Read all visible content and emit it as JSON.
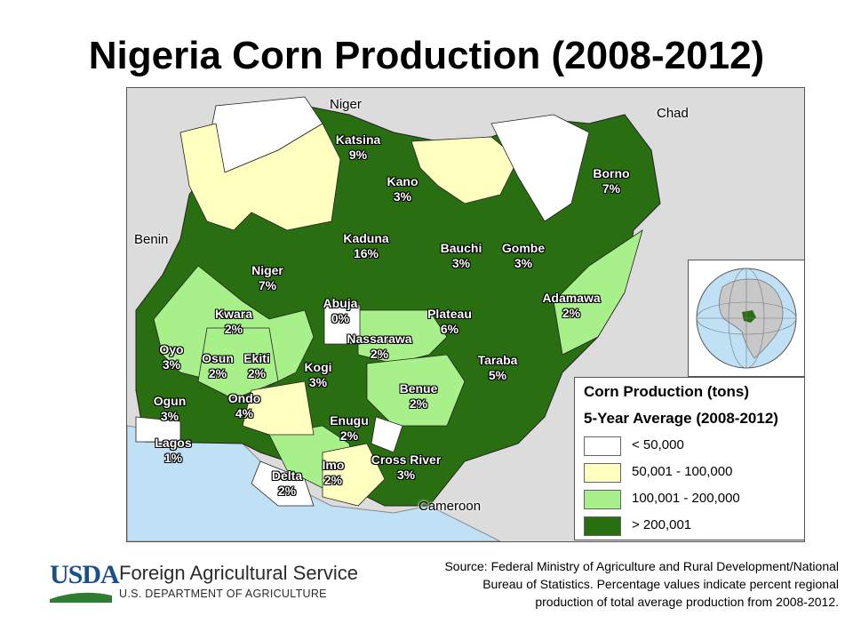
{
  "title": "Nigeria Corn Production (2008-2012)",
  "colors": {
    "class_lt_50k": "#ffffff",
    "class_50k_100k": "#ffffc0",
    "class_100k_200k": "#a8f08a",
    "class_gt_200k": "#2a6e12",
    "ocean": "#bfe0f5",
    "neighbor": "#dcdcdc"
  },
  "countries": {
    "niger": "Niger",
    "chad": "Chad",
    "benin": "Benin",
    "cameroon": "Cameroon"
  },
  "states": [
    {
      "name": "Katsina",
      "pct": "9%",
      "class": "> 200,001"
    },
    {
      "name": "Kano",
      "pct": "3%",
      "class": "> 200,001"
    },
    {
      "name": "Borno",
      "pct": "7%",
      "class": "> 200,001"
    },
    {
      "name": "Kaduna",
      "pct": "16%",
      "class": "> 200,001"
    },
    {
      "name": "Bauchi",
      "pct": "3%",
      "class": "> 200,001"
    },
    {
      "name": "Gombe",
      "pct": "3%",
      "class": "> 200,001"
    },
    {
      "name": "Niger",
      "pct": "7%",
      "class": "> 200,001"
    },
    {
      "name": "Adamawa",
      "pct": "2%",
      "class": "100,001 - 200,000"
    },
    {
      "name": "Abuja",
      "pct": "0%",
      "class": "< 50,000"
    },
    {
      "name": "Kwara",
      "pct": "2%",
      "class": "100,001 - 200,000"
    },
    {
      "name": "Plateau",
      "pct": "6%",
      "class": "> 200,001"
    },
    {
      "name": "Nassarawa",
      "pct": "2%",
      "class": "100,001 - 200,000"
    },
    {
      "name": "Oyo",
      "pct": "3%",
      "class": "> 200,001"
    },
    {
      "name": "Osun",
      "pct": "2%",
      "class": "100,001 - 200,000"
    },
    {
      "name": "Ekiti",
      "pct": "2%",
      "class": "100,001 - 200,000"
    },
    {
      "name": "Kogi",
      "pct": "3%",
      "class": "> 200,001"
    },
    {
      "name": "Taraba",
      "pct": "5%",
      "class": "> 200,001"
    },
    {
      "name": "Ogun",
      "pct": "3%",
      "class": "> 200,001"
    },
    {
      "name": "Ondo",
      "pct": "4%",
      "class": "> 200,001"
    },
    {
      "name": "Benue",
      "pct": "2%",
      "class": "100,001 - 200,000"
    },
    {
      "name": "Enugu",
      "pct": "2%",
      "class": "100,001 - 200,000"
    },
    {
      "name": "Lagos",
      "pct": "1%",
      "class": "< 50,000"
    },
    {
      "name": "Imo",
      "pct": "2%",
      "class": "100,001 - 200,000"
    },
    {
      "name": "Cross River",
      "pct": "3%",
      "class": "> 200,001"
    },
    {
      "name": "Delta",
      "pct": "2%",
      "class": "100,001 - 200,000"
    }
  ],
  "legend": {
    "title": "Corn Production (tons)",
    "subtitle": "5-Year Average (2008-2012)",
    "items": [
      {
        "label": "< 50,000",
        "color": "#ffffff"
      },
      {
        "label": "50,001 - 100,000",
        "color": "#ffffc0"
      },
      {
        "label": "100,001 - 200,000",
        "color": "#a8f08a"
      },
      {
        "label": "> 200,001",
        "color": "#2a6e12"
      }
    ]
  },
  "footer": {
    "logo_text": "USDA",
    "agency": "Foreign Agricultural Service",
    "department": "U.S. DEPARTMENT OF AGRICULTURE",
    "source_line1": "Source: Federal  Ministry of Agriculture and Rural Development/National",
    "source_line2": "Bureau of Statistics. Percentage values indicate percent regional",
    "source_line3": "production of total average production from 2008-2012."
  }
}
